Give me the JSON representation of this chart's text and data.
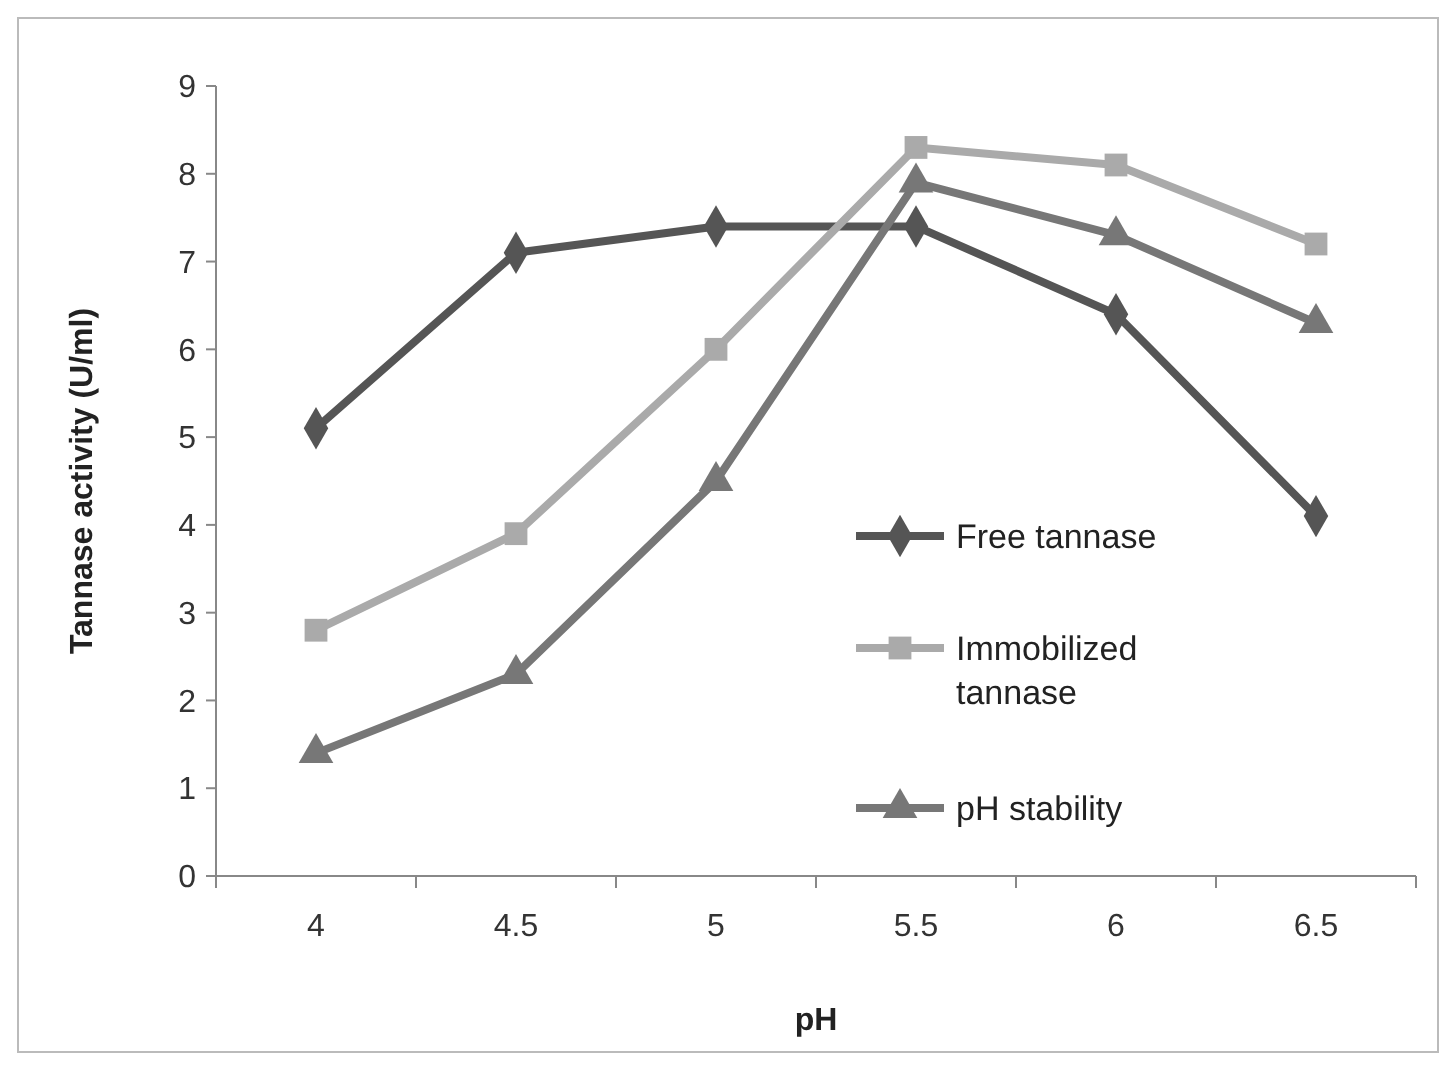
{
  "chart_data": {
    "type": "line",
    "xlabel": "pH",
    "ylabel": "Tannase activity (U/ml)",
    "categories": [
      "4",
      "4.5",
      "5",
      "5.5",
      "6",
      "6.5"
    ],
    "ylim": [
      0,
      9
    ],
    "yticks": [
      0,
      1,
      2,
      3,
      4,
      5,
      6,
      7,
      8,
      9
    ],
    "grid": false,
    "legend": "right",
    "series": [
      {
        "name": "Free tannase",
        "color": "#555555",
        "marker": "diamond",
        "values": [
          5.1,
          7.1,
          7.4,
          7.4,
          6.4,
          4.1
        ]
      },
      {
        "name": "Immobilized tannase",
        "color": "#aaaaaa",
        "marker": "square",
        "values": [
          2.8,
          3.9,
          6.0,
          8.3,
          8.1,
          7.2
        ]
      },
      {
        "name": "pH stability",
        "color": "#777777",
        "marker": "triangle",
        "values": [
          1.4,
          2.3,
          4.5,
          7.9,
          7.3,
          6.3
        ]
      }
    ]
  }
}
